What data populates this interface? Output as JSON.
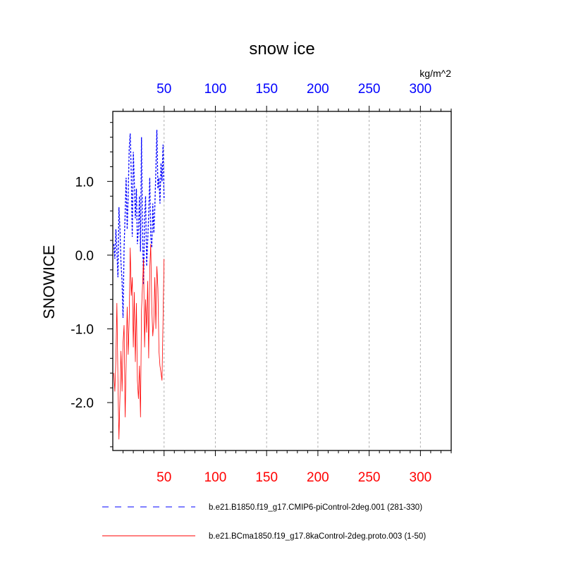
{
  "chart_data": {
    "type": "line",
    "title": "snow ice",
    "ylabel": "SNOWICE",
    "units": "kg/m^2",
    "xlim": [
      0,
      330
    ],
    "ylim": [
      -2.65,
      1.95
    ],
    "top_axis": {
      "color": "#0000ff",
      "ticks": [
        50,
        100,
        150,
        200,
        250,
        300
      ]
    },
    "bottom_axis": {
      "color": "#ff0000",
      "ticks": [
        50,
        100,
        150,
        200,
        250,
        300
      ]
    },
    "y_ticks": [
      {
        "value": 1.0,
        "label": "1.0"
      },
      {
        "value": 0.0,
        "label": "0.0"
      },
      {
        "value": -1.0,
        "label": "-1.0"
      },
      {
        "value": -2.0,
        "label": "-2.0"
      }
    ],
    "vertical_gridlines": [
      50,
      100,
      150,
      200,
      250,
      300
    ],
    "series": [
      {
        "name": "b.e21.B1850.f19_g17.CMIP6-piControl-2deg.001 (281-330)",
        "color": "#0000ff",
        "style": "dashed",
        "x": [
          1,
          2,
          3,
          4,
          5,
          6,
          7,
          8,
          9,
          10,
          11,
          12,
          13,
          14,
          15,
          16,
          17,
          18,
          19,
          20,
          21,
          22,
          23,
          24,
          25,
          26,
          27,
          28,
          29,
          30,
          31,
          32,
          33,
          34,
          35,
          36,
          37,
          38,
          39,
          40,
          41,
          42,
          43,
          44,
          45,
          46,
          47,
          48,
          49,
          50
        ],
        "values": [
          0.15,
          -0.05,
          0.35,
          0.05,
          -0.3,
          0.65,
          0.35,
          -0.1,
          -0.35,
          -0.85,
          0.1,
          0.55,
          1.05,
          0.35,
          0.8,
          1.45,
          1.65,
          1.1,
          0.25,
          1.4,
          1.0,
          0.5,
          0.9,
          0.15,
          0.35,
          0.8,
          0.05,
          1.6,
          0.3,
          -0.4,
          0.5,
          0.8,
          -0.15,
          0.2,
          0.55,
          1.05,
          0.25,
          0.1,
          0.7,
          0.3,
          0.65,
          1.15,
          1.7,
          0.9,
          1.05,
          0.7,
          1.25,
          1.0,
          1.5,
          0.75
        ]
      },
      {
        "name": "b.e21.BCma1850.f19_g17.8kaControl-2deg.proto.003 (1-50)",
        "color": "#ff0000",
        "style": "solid",
        "x": [
          1,
          2,
          3,
          4,
          5,
          6,
          7,
          8,
          9,
          10,
          11,
          12,
          13,
          14,
          15,
          16,
          17,
          18,
          19,
          20,
          21,
          22,
          23,
          24,
          25,
          26,
          27,
          28,
          29,
          30,
          31,
          32,
          33,
          34,
          35,
          36,
          37,
          38,
          39,
          40,
          41,
          42,
          43,
          44,
          45,
          46,
          47,
          48,
          49,
          50
        ],
        "values": [
          -1.6,
          -1.85,
          -1.4,
          -0.65,
          -1.7,
          -2.5,
          -1.9,
          -1.3,
          -1.85,
          -1.2,
          -0.95,
          -2.2,
          -1.5,
          -0.7,
          -1.35,
          -0.85,
          0.1,
          -0.55,
          -0.3,
          -1.25,
          -0.5,
          -1.45,
          -0.65,
          -1.7,
          -1.95,
          -1.5,
          -2.2,
          -0.75,
          -0.4,
          -0.05,
          -1.25,
          -0.6,
          -1.05,
          -0.35,
          -1.4,
          -0.2,
          0.15,
          -0.7,
          -1.1,
          -0.9,
          -0.3,
          -1.0,
          -0.15,
          -0.45,
          -1.3,
          -1.5,
          -1.6,
          -1.7,
          -0.85,
          -0.05
        ]
      }
    ],
    "legend": [
      {
        "label": "b.e21.B1850.f19_g17.CMIP6-piControl-2deg.001 (281-330)",
        "color": "#0000ff",
        "style": "dashed"
      },
      {
        "label": "b.e21.BCma1850.f19_g17.8kaControl-2deg.proto.003 (1-50)",
        "color": "#ff0000",
        "style": "solid"
      }
    ],
    "legend_position": "bottom",
    "grid": "vertical-dotted"
  }
}
